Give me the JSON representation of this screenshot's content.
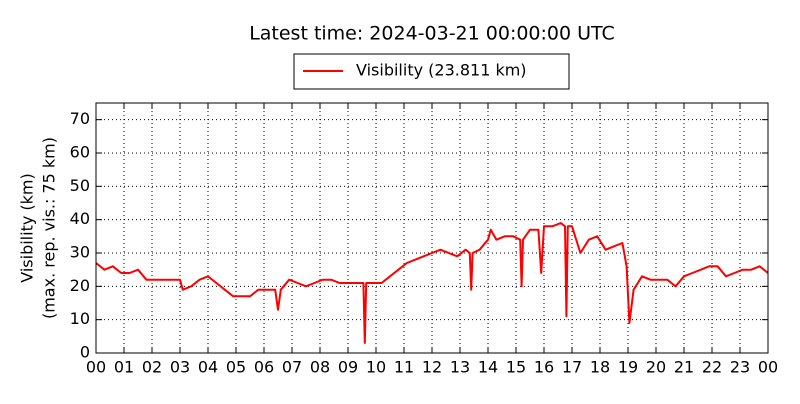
{
  "chart_data": {
    "type": "line",
    "title": "Latest time: 2024-03-21 00:00:00 UTC",
    "ylabel": [
      "Visibility (km)",
      "(max. rep. vis.: 75 km)"
    ],
    "xlim": [
      0,
      24
    ],
    "ylim": [
      0,
      75
    ],
    "xticks": [
      {
        "value": 0,
        "label": "00"
      },
      {
        "value": 1,
        "label": "01"
      },
      {
        "value": 2,
        "label": "02"
      },
      {
        "value": 3,
        "label": "03"
      },
      {
        "value": 4,
        "label": "04"
      },
      {
        "value": 5,
        "label": "05"
      },
      {
        "value": 6,
        "label": "06"
      },
      {
        "value": 7,
        "label": "07"
      },
      {
        "value": 8,
        "label": "08"
      },
      {
        "value": 9,
        "label": "09"
      },
      10,
      11,
      12,
      13,
      14,
      15,
      16,
      17,
      18,
      19,
      20,
      21,
      22,
      23,
      {
        "value": 24,
        "label": "00"
      }
    ],
    "yticks": [
      0,
      10,
      20,
      30,
      40,
      50,
      60,
      70
    ],
    "grid": true,
    "series": [
      {
        "name": "Visibility (23.811 km)",
        "color": "#ff0000",
        "x": [
          0,
          0.3,
          0.6,
          0.9,
          1.2,
          1.5,
          1.8,
          2.1,
          2.4,
          2.7,
          3.0,
          3.1,
          3.4,
          3.7,
          4.0,
          4.3,
          4.6,
          4.9,
          5.2,
          5.5,
          5.8,
          6.1,
          6.4,
          6.5,
          6.6,
          6.9,
          7.2,
          7.5,
          7.8,
          8.1,
          8.4,
          8.7,
          9.0,
          9.3,
          9.55,
          9.6,
          9.65,
          9.9,
          10.2,
          10.5,
          10.8,
          11.1,
          11.4,
          11.7,
          12.0,
          12.3,
          12.6,
          12.9,
          13.2,
          13.35,
          13.4,
          13.45,
          13.7,
          14.0,
          14.1,
          14.3,
          14.6,
          14.9,
          15.15,
          15.2,
          15.25,
          15.5,
          15.8,
          15.9,
          16.0,
          16.3,
          16.6,
          16.75,
          16.8,
          16.85,
          17.0,
          17.3,
          17.6,
          17.9,
          18.2,
          18.5,
          18.8,
          18.95,
          19.05,
          19.2,
          19.5,
          19.8,
          20.1,
          20.4,
          20.7,
          21.0,
          21.3,
          21.6,
          21.9,
          22.2,
          22.5,
          22.8,
          23.1,
          23.4,
          23.7,
          24
        ],
        "values": [
          27,
          25,
          26,
          24,
          24,
          25,
          22,
          22,
          22,
          22,
          22,
          19,
          20,
          22,
          23,
          21,
          19,
          17,
          17,
          17,
          19,
          19,
          19,
          13,
          19,
          22,
          21,
          20,
          21,
          22,
          22,
          21,
          21,
          21,
          21,
          3,
          21,
          21,
          21,
          23,
          25,
          27,
          28,
          29,
          30,
          31,
          30,
          29,
          31,
          30,
          19,
          30,
          31,
          34,
          37,
          34,
          35,
          35,
          34,
          20,
          34,
          37,
          37,
          24,
          38,
          38,
          39,
          38,
          11,
          38,
          38,
          30,
          34,
          35,
          31,
          32,
          33,
          26,
          9,
          19,
          23,
          22,
          22,
          22,
          20,
          23,
          24,
          25,
          26,
          26,
          23,
          24,
          25,
          25,
          26,
          24
        ]
      }
    ]
  }
}
